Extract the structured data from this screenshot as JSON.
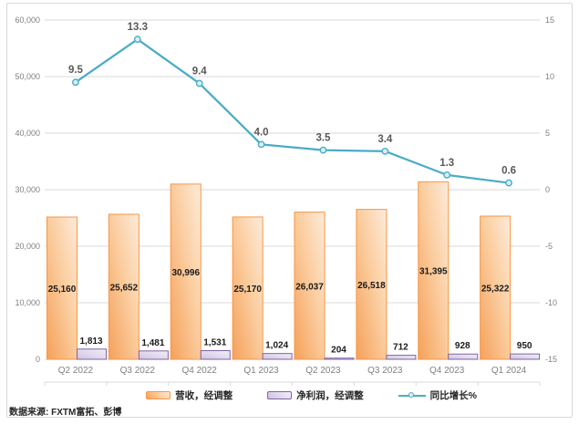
{
  "source_note": "数据来源: FXTM富拓、彭博",
  "colors": {
    "revenue_border": "#F79646",
    "revenue_fill_dark": "#F5A15A",
    "revenue_fill_mid": "#FBCEA0",
    "revenue_fill_light": "#FDEBDA",
    "profit_border": "#8064A2",
    "profit_fill_dark": "#CFC2E0",
    "profit_fill_mid": "#E4DCEF",
    "profit_fill_light": "#F0ECF7",
    "line": "#4BACC6",
    "marker_fill": "#DAEEF3",
    "gridline": "#D9D9D9",
    "axis_text": "#808080",
    "bar_label_text": "#1a1a1a",
    "line_label_text": "#595959"
  },
  "chart_data": {
    "type": "combo",
    "categories": [
      "Q2 2022",
      "Q3 2022",
      "Q4 2022",
      "Q1 2023",
      "Q2 2023",
      "Q3 2023",
      "Q4 2023",
      "Q1 2024"
    ],
    "series": [
      {
        "name": "营收，经调整",
        "type": "bar",
        "axis": "left",
        "values": [
          25160,
          25652,
          30996,
          25170,
          26037,
          26518,
          31395,
          25322
        ],
        "value_labels": [
          "25,160",
          "25,652",
          "30,996",
          "25,170",
          "26,037",
          "26,518",
          "31,395",
          "25,322"
        ]
      },
      {
        "name": "净利润，经调整",
        "type": "bar",
        "axis": "left",
        "values": [
          1813,
          1481,
          1531,
          1024,
          204,
          712,
          928,
          950
        ],
        "value_labels": [
          "1,813",
          "1,481",
          "1,531",
          "1,024",
          "204",
          "712",
          "928",
          "950"
        ]
      },
      {
        "name": "同比增长%",
        "type": "line",
        "axis": "right",
        "values": [
          9.5,
          13.3,
          9.4,
          4.0,
          3.5,
          3.4,
          1.3,
          0.6
        ],
        "value_labels": [
          "9.5",
          "13.3",
          "9.4",
          "4.0",
          "3.5",
          "3.4",
          "1.3",
          "0.6"
        ]
      }
    ],
    "left_axis": {
      "min": 0,
      "max": 60000,
      "tick_labels": [
        "60,000",
        "50,000",
        "40,000",
        "30,000",
        "20,000",
        "10,000",
        "0"
      ]
    },
    "right_axis": {
      "min": -15,
      "max": 15,
      "tick_labels": [
        "15",
        "10",
        "5",
        "0",
        "-5",
        "-10",
        "-15"
      ]
    },
    "grid": true,
    "legend_position": "bottom"
  }
}
